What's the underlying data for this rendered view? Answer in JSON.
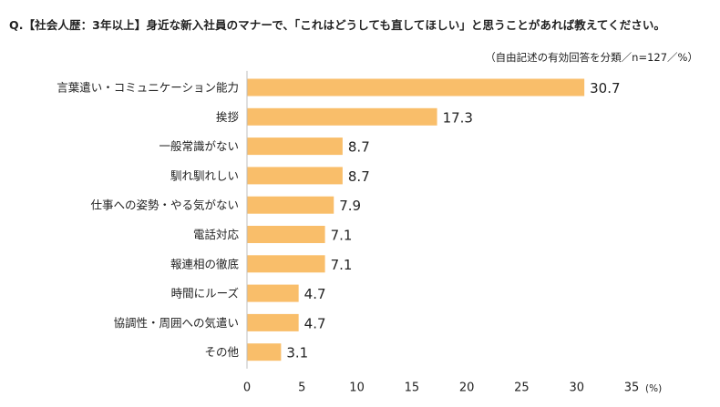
{
  "header": {
    "question": "Q.【社会人歴：3年以上】身近な新入社員のマナーで、「これはどうしても直してほしい」と思うことがあれば教えてください。",
    "note": "（自由記述の有効回答を分類／n=127／%）"
  },
  "chart_data": {
    "type": "bar",
    "orientation": "horizontal",
    "title": "",
    "xlabel": "",
    "ylabel": "",
    "x_unit": "(%)",
    "xlim": [
      0,
      35
    ],
    "x_ticks": [
      0,
      5,
      10,
      15,
      20,
      25,
      30,
      35
    ],
    "grid": false,
    "bar_color": "#F9BE6A",
    "categories": [
      "言葉遣い・コミュニケーション能力",
      "挨拶",
      "一般常識がない",
      "馴れ馴れしい",
      "仕事への姿勢・やる気がない",
      "電話対応",
      "報連相の徹底",
      "時間にルーズ",
      "協調性・周囲への気遣い",
      "その他"
    ],
    "values": [
      30.7,
      17.3,
      8.7,
      8.7,
      7.9,
      7.1,
      7.1,
      4.7,
      4.7,
      3.1
    ]
  }
}
